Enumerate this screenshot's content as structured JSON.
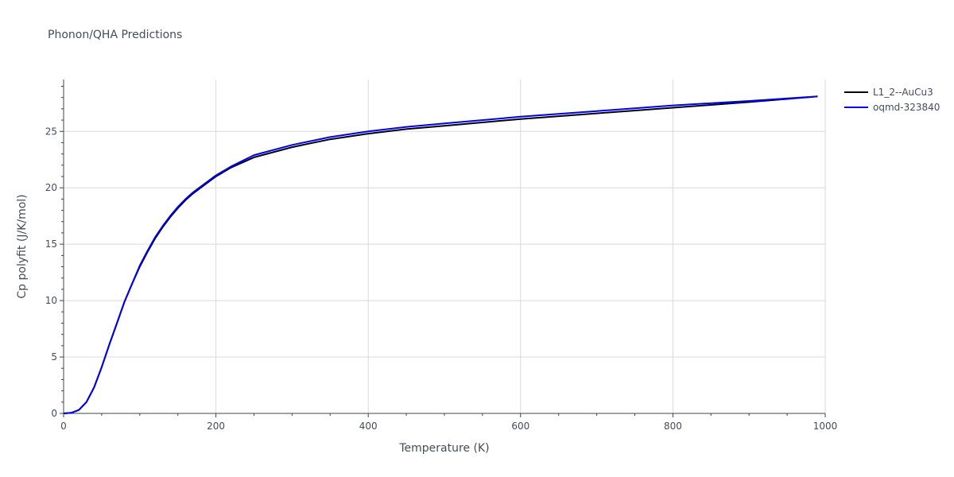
{
  "title": "Phonon/QHA Predictions",
  "chart_data": {
    "type": "line",
    "title": "Phonon/QHA Predictions",
    "xlabel": "Temperature (K)",
    "ylabel": "Cp polyfit (J/K/mol)",
    "xlim": [
      0,
      1000
    ],
    "ylim": [
      0,
      29.6
    ],
    "xticks": [
      0,
      200,
      400,
      600,
      800,
      1000
    ],
    "yticks": [
      0,
      5,
      10,
      15,
      20,
      25
    ],
    "grid": true,
    "legend_position": "top-right",
    "series": [
      {
        "name": "L1_2--AuCu3",
        "color": "#000000",
        "x": [
          0,
          10,
          20,
          30,
          40,
          50,
          60,
          70,
          80,
          90,
          100,
          110,
          120,
          130,
          140,
          150,
          160,
          170,
          180,
          190,
          200,
          220,
          250,
          300,
          350,
          400,
          450,
          500,
          600,
          700,
          800,
          900,
          990
        ],
        "y": [
          0,
          0.05,
          0.3,
          1.0,
          2.3,
          4.1,
          6.1,
          8.0,
          9.9,
          11.5,
          13.0,
          14.3,
          15.5,
          16.5,
          17.4,
          18.2,
          18.9,
          19.5,
          20.0,
          20.5,
          21.0,
          21.8,
          22.7,
          23.6,
          24.3,
          24.8,
          25.2,
          25.5,
          26.1,
          26.6,
          27.1,
          27.6,
          28.1
        ]
      },
      {
        "name": "oqmd-323840",
        "color": "#0000ee",
        "x": [
          0,
          10,
          20,
          30,
          40,
          50,
          60,
          70,
          80,
          90,
          100,
          110,
          120,
          130,
          140,
          150,
          160,
          170,
          180,
          190,
          200,
          220,
          250,
          300,
          350,
          400,
          450,
          500,
          600,
          700,
          800,
          900,
          990
        ],
        "y": [
          0,
          0.05,
          0.3,
          1.0,
          2.3,
          4.1,
          6.1,
          8.0,
          9.9,
          11.5,
          13.1,
          14.4,
          15.6,
          16.6,
          17.5,
          18.3,
          19.0,
          19.6,
          20.1,
          20.6,
          21.1,
          21.9,
          22.9,
          23.8,
          24.5,
          25.0,
          25.4,
          25.7,
          26.3,
          26.8,
          27.3,
          27.7,
          28.1
        ]
      }
    ]
  }
}
